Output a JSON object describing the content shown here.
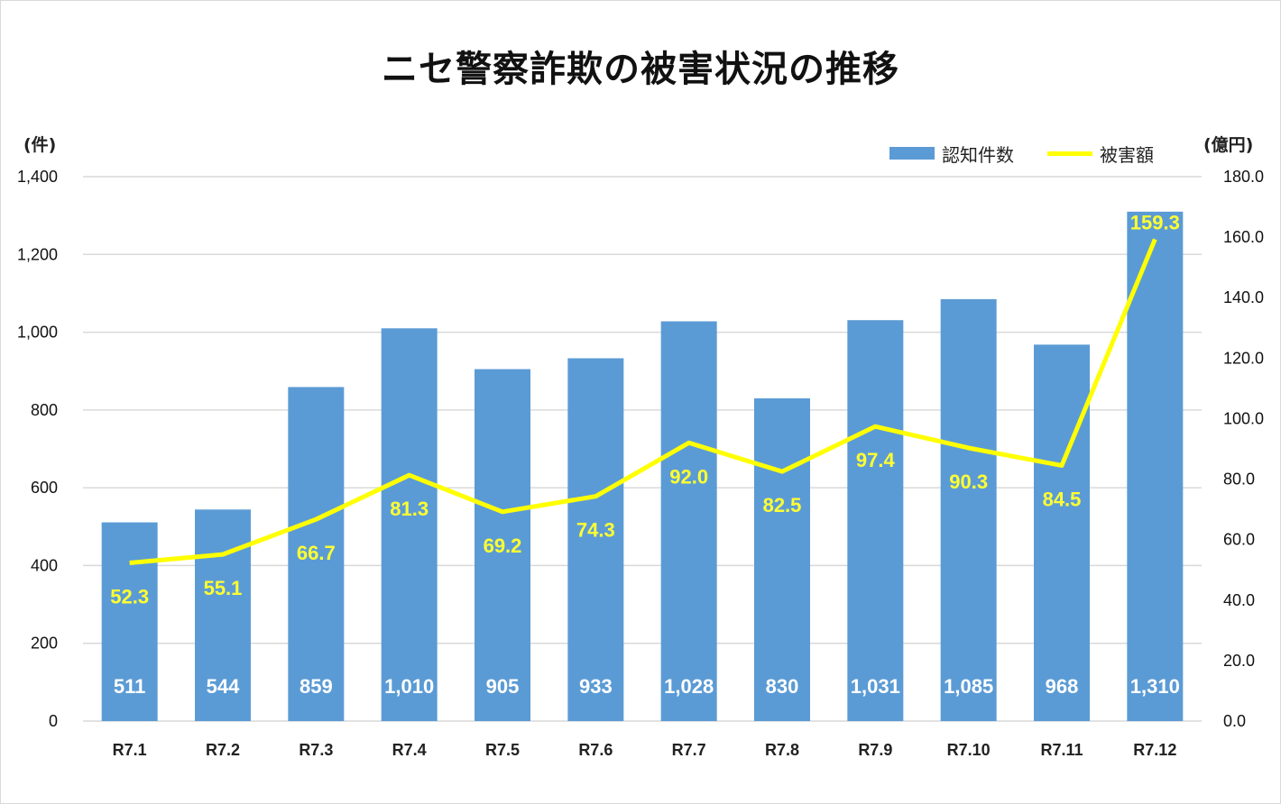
{
  "chart_data": {
    "type": "bar",
    "title": "ニセ警察詐欺の被害状況の推移",
    "categories": [
      "R7.1",
      "R7.2",
      "R7.3",
      "R7.4",
      "R7.5",
      "R7.6",
      "R7.7",
      "R7.8",
      "R7.9",
      "R7.10",
      "R7.11",
      "R7.12"
    ],
    "series": [
      {
        "name": "認知件数",
        "type": "bar",
        "axis": "left",
        "color": "#5b9bd5",
        "values": [
          511,
          544,
          859,
          1010,
          905,
          933,
          1028,
          830,
          1031,
          1085,
          968,
          1310
        ],
        "labels": [
          "511",
          "544",
          "859",
          "1,010",
          "905",
          "933",
          "1,028",
          "830",
          "1,031",
          "1,085",
          "968",
          "1,310"
        ]
      },
      {
        "name": "被害額",
        "type": "line",
        "axis": "right",
        "color": "#ffff00",
        "values": [
          52.3,
          55.1,
          66.7,
          81.3,
          69.2,
          74.3,
          92.0,
          82.5,
          97.4,
          90.3,
          84.5,
          159.3
        ],
        "labels": [
          "52.3",
          "55.1",
          "66.7",
          "81.3",
          "69.2",
          "74.3",
          "92.0",
          "82.5",
          "97.4",
          "90.3",
          "84.5",
          "159.3"
        ]
      }
    ],
    "y_left": {
      "unit": "(件)",
      "ylim": [
        0,
        1400
      ],
      "ticks": [
        0,
        200,
        400,
        600,
        800,
        1000,
        1200,
        1400
      ],
      "tick_labels": [
        "0",
        "200",
        "400",
        "600",
        "800",
        "1,000",
        "1,200",
        "1,400"
      ]
    },
    "y_right": {
      "unit": "(億円)",
      "ylim": [
        0,
        180
      ],
      "ticks": [
        0,
        20,
        40,
        60,
        80,
        100,
        120,
        140,
        160,
        180
      ],
      "tick_labels": [
        "0.0",
        "20.0",
        "40.0",
        "60.0",
        "80.0",
        "100.0",
        "120.0",
        "140.0",
        "160.0",
        "180.0"
      ]
    },
    "grid": true,
    "legend": "top-right",
    "gridline_color": "#d9d9d9"
  }
}
